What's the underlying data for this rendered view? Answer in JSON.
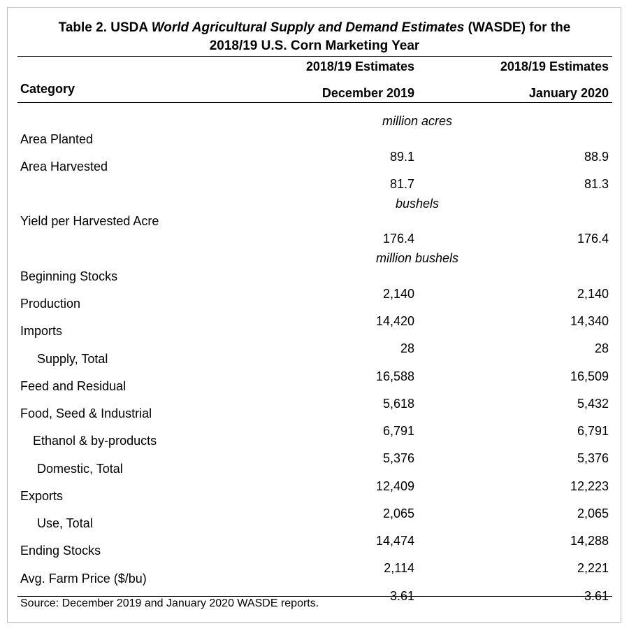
{
  "title": {
    "line1_prefix": "Table 2. USDA ",
    "line1_italic": "World Agricultural Supply and Demand Estimates",
    "line1_suffix": " (WASDE) for the",
    "line2": "2018/19 U.S. Corn Marketing Year"
  },
  "header": {
    "category": "Category",
    "col1_line1": "2018/19 Estimates",
    "col1_line2": "December 2019",
    "col2_line1": "2018/19 Estimates",
    "col2_line2": "January 2020"
  },
  "units": {
    "acres": "million acres",
    "bushels": "bushels",
    "million_bushels": "million bushels"
  },
  "rows": [
    {
      "label": "Area Planted",
      "dec": "89.1",
      "jan": "88.9"
    },
    {
      "label": "Area Harvested",
      "dec": "81.7",
      "jan": "81.3"
    },
    {
      "label": "Yield per Harvested Acre",
      "dec": "176.4",
      "jan": "176.4"
    },
    {
      "label": "Beginning Stocks",
      "dec": "2,140",
      "jan": "2,140"
    },
    {
      "label": "Production",
      "dec": "14,420",
      "jan": "14,340"
    },
    {
      "label": "Imports",
      "dec": "28",
      "jan": "28"
    },
    {
      "label": "Supply, Total",
      "dec": "16,588",
      "jan": "16,509"
    },
    {
      "label": "Feed and Residual",
      "dec": "5,618",
      "jan": "5,432"
    },
    {
      "label": "Food, Seed & Industrial",
      "dec": "6,791",
      "jan": "6,791"
    },
    {
      "label": "Ethanol & by-products",
      "dec": "5,376",
      "jan": "5,376"
    },
    {
      "label": "Domestic, Total",
      "dec": "12,409",
      "jan": "12,223"
    },
    {
      "label": "Exports",
      "dec": "2,065",
      "jan": "2,065"
    },
    {
      "label": "Use, Total",
      "dec": "14,474",
      "jan": "14,288"
    },
    {
      "label": "Ending Stocks",
      "dec": "2,114",
      "jan": "2,221"
    },
    {
      "label": "Avg. Farm Price ($/bu)",
      "dec": "3.61",
      "jan": "3.61"
    }
  ],
  "source": "Source: December 2019 and January 2020 WASDE reports."
}
